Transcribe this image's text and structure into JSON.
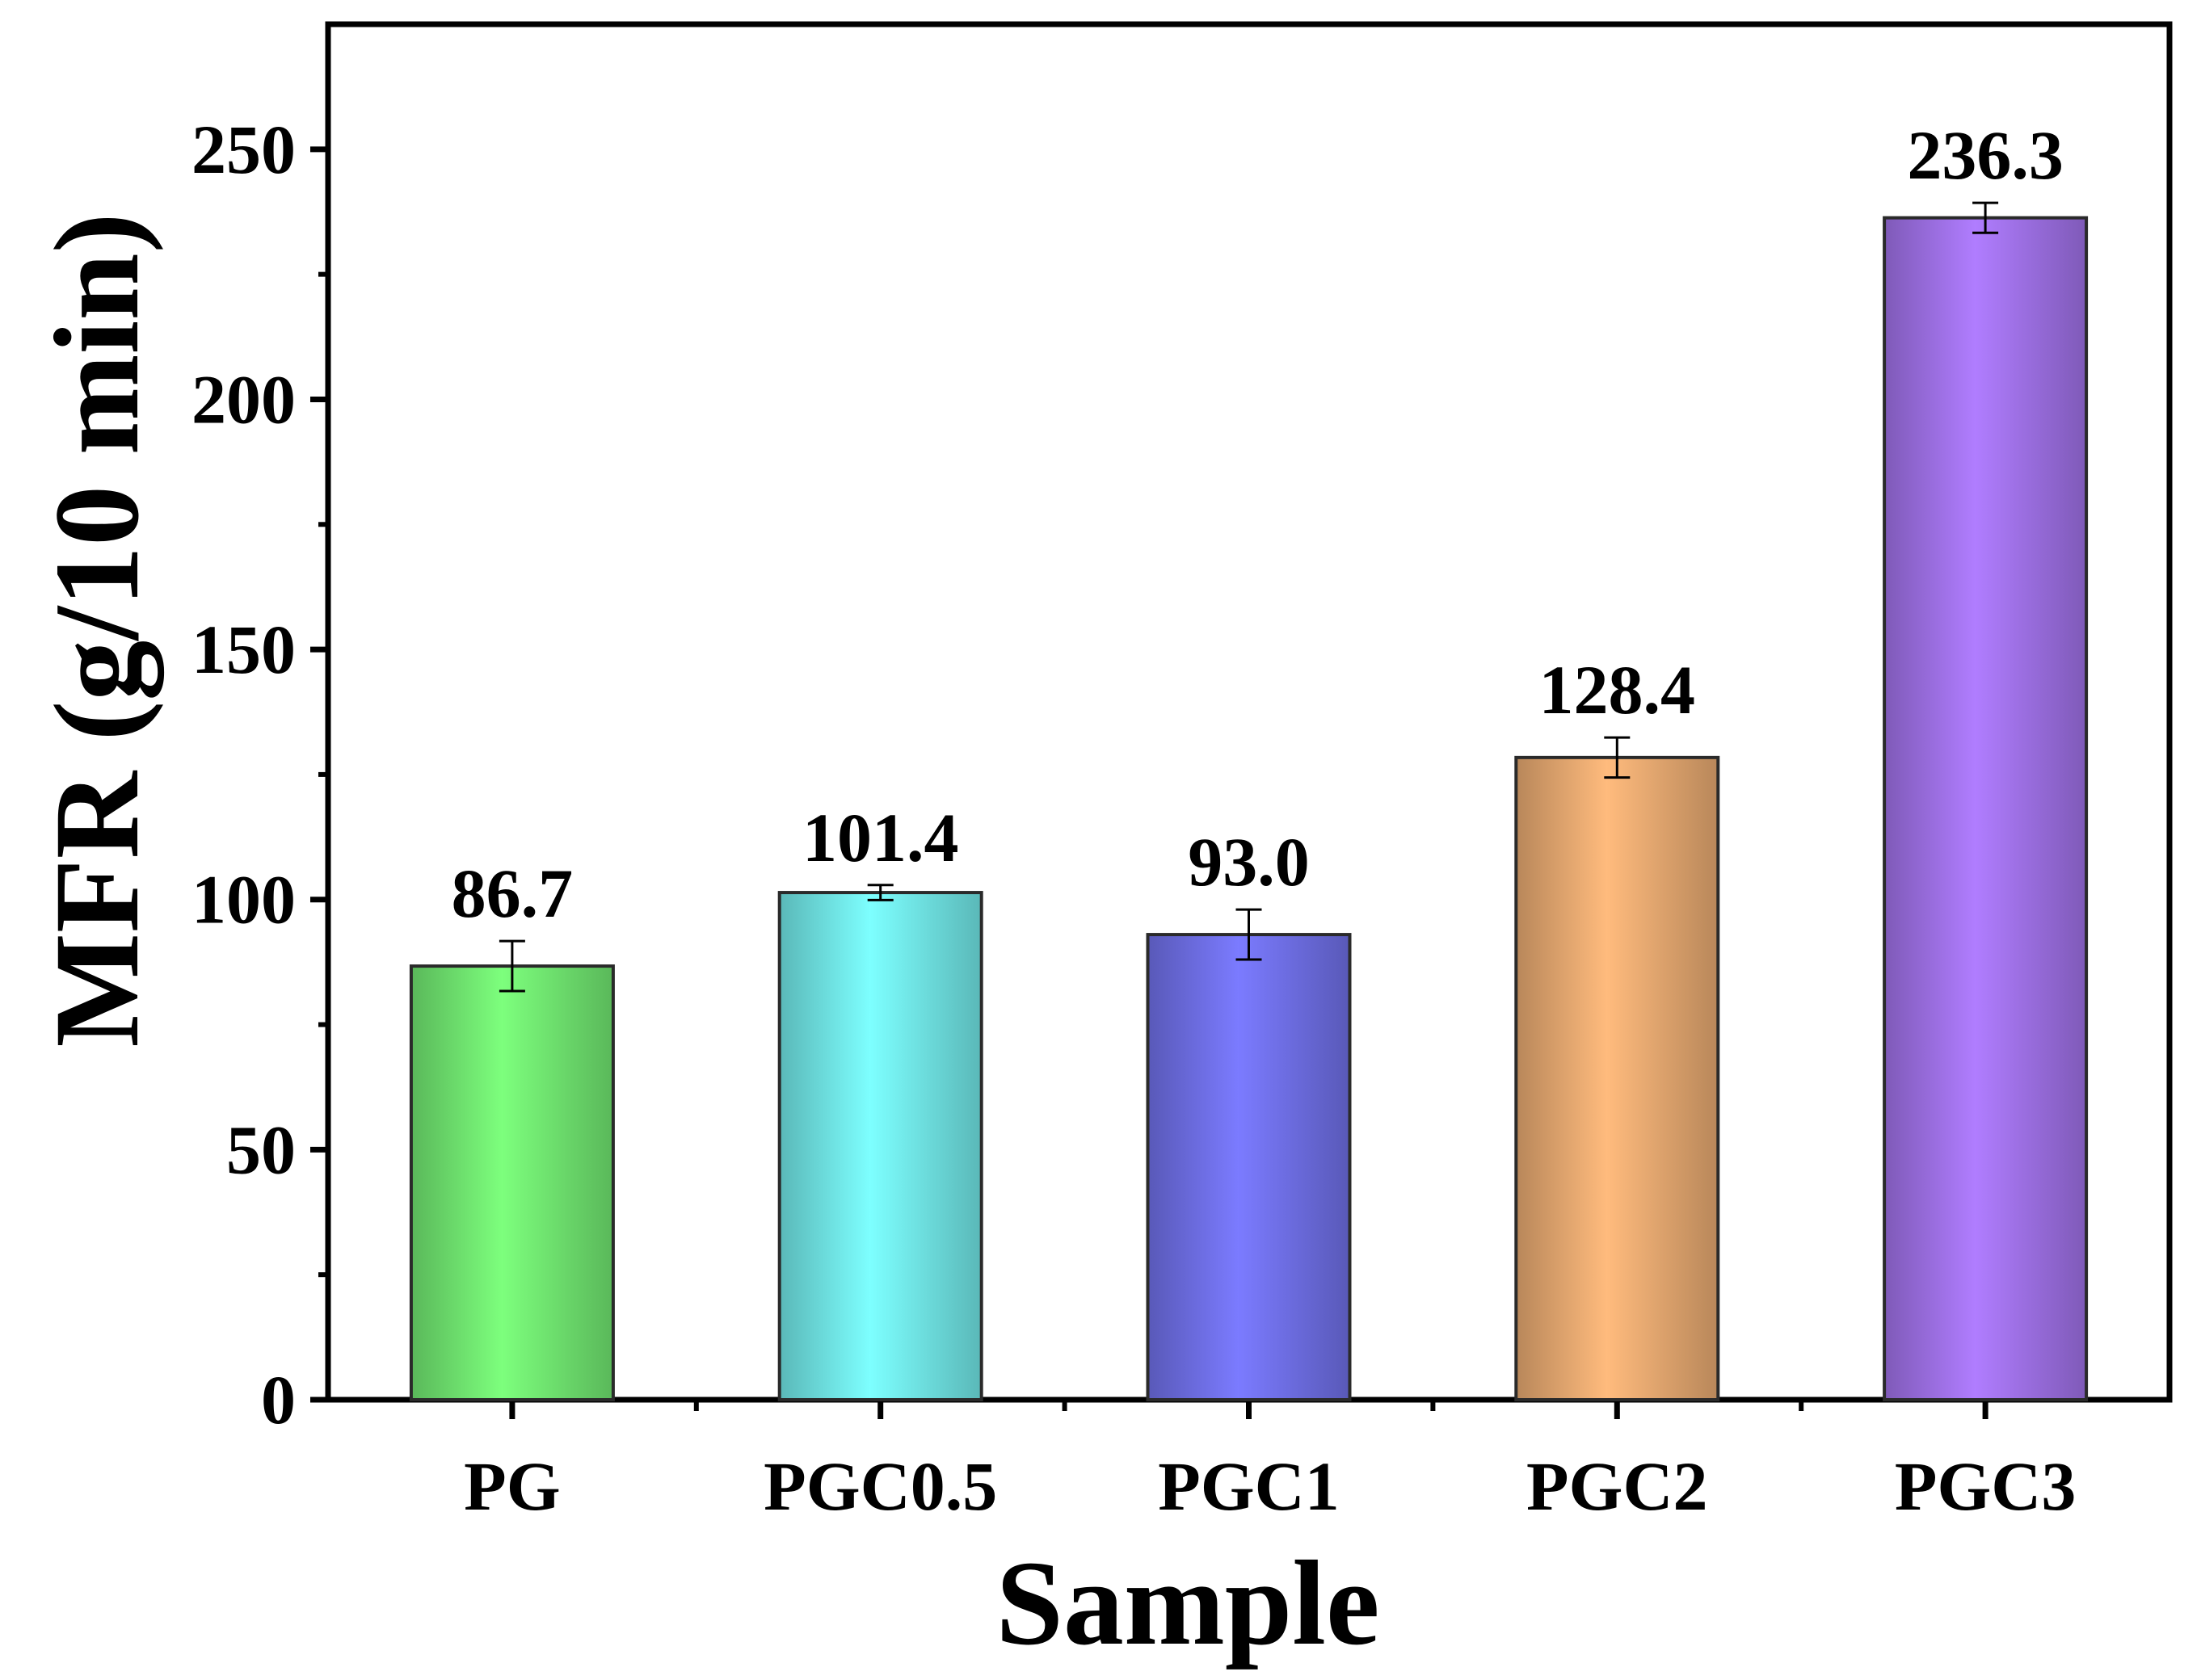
{
  "chart_data": {
    "type": "bar",
    "title": "",
    "xlabel": "Sample",
    "ylabel": "MFR (g/10 min)",
    "ylim": [
      0,
      275
    ],
    "yticks": [
      0,
      50,
      100,
      150,
      200,
      250
    ],
    "ytick_labels": [
      "0",
      "50",
      "100",
      "150",
      "200",
      "250"
    ],
    "categories": [
      "PG",
      "PGC0.5",
      "PGC1",
      "PGC2",
      "PGC3"
    ],
    "values": [
      86.7,
      101.4,
      93.0,
      128.4,
      236.3
    ],
    "errors": [
      5,
      1.5,
      5,
      4,
      3
    ],
    "data_labels": [
      "86.7",
      "101.4",
      "93.0",
      "128.4",
      "236.3"
    ],
    "colors": [
      "#7dff7d",
      "#7dffff",
      "#7b7bff",
      "#ffbb7d",
      "#b07dff"
    ],
    "grid": false,
    "legend": "none"
  }
}
